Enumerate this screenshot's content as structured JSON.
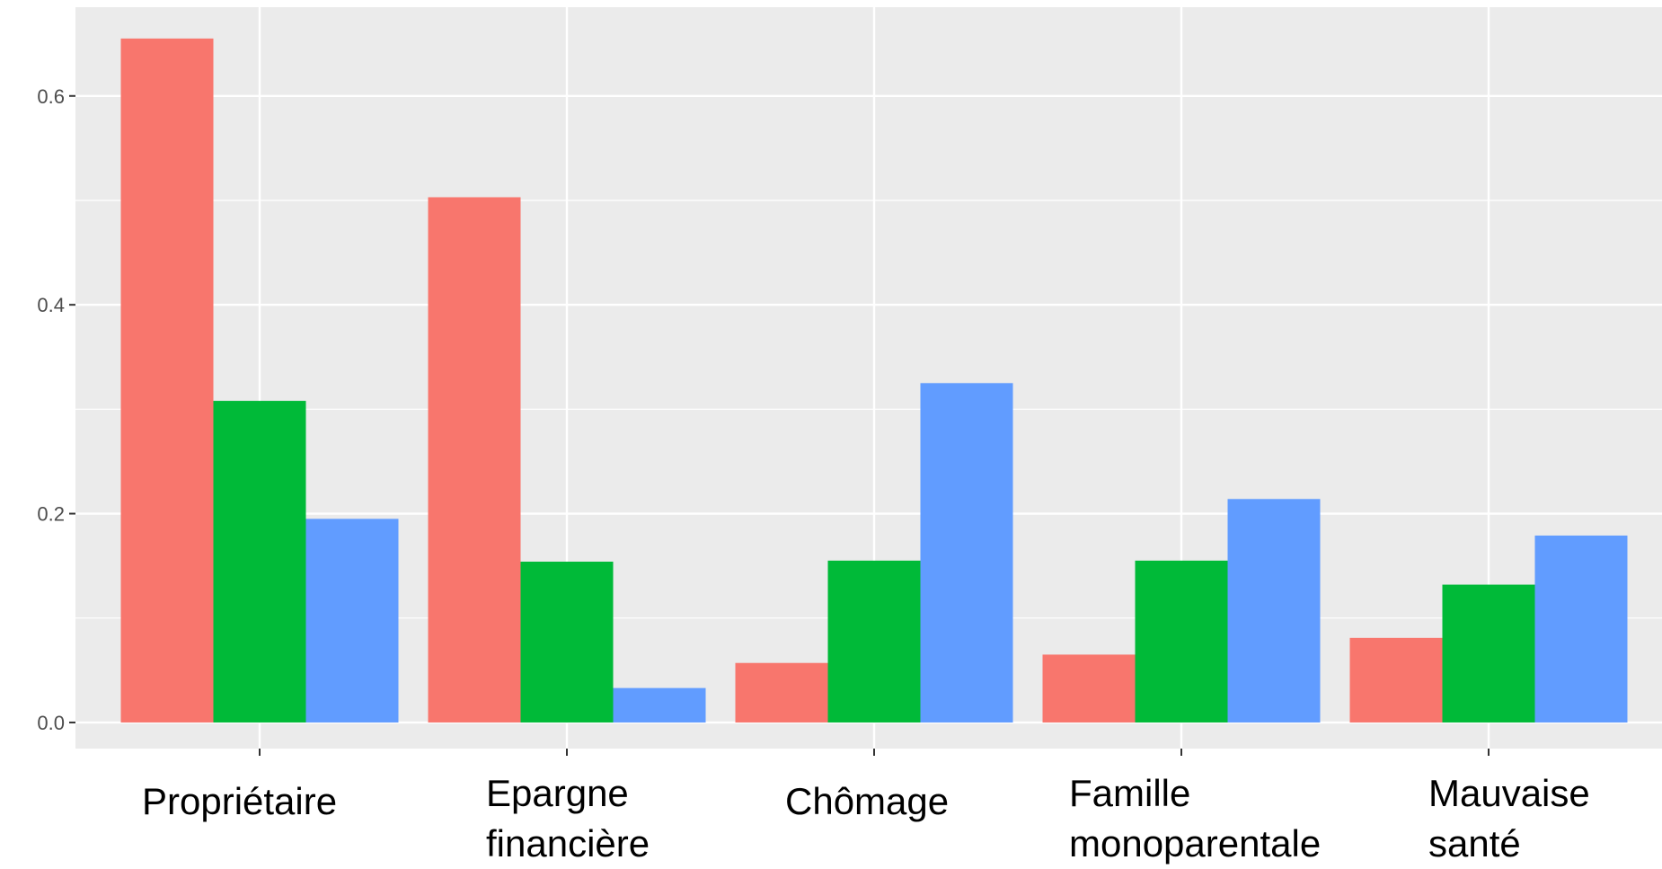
{
  "chart_data": {
    "type": "bar",
    "title": "",
    "xlabel": "",
    "ylabel": "",
    "categories": [
      [
        "Propriétaire"
      ],
      [
        "Epargne",
        "financière"
      ],
      [
        "Chômage"
      ],
      [
        "Famille",
        "monoparentale"
      ],
      [
        "Mauvaise",
        "santé"
      ]
    ],
    "series": [
      {
        "color": "#F8766D",
        "values": [
          0.655,
          0.503,
          0.057,
          0.065,
          0.081
        ]
      },
      {
        "color": "#00BA38",
        "values": [
          0.308,
          0.154,
          0.155,
          0.155,
          0.132
        ]
      },
      {
        "color": "#619CFF",
        "values": [
          0.195,
          0.033,
          0.325,
          0.214,
          0.179
        ]
      }
    ],
    "ylim": [
      -0.025,
      0.685
    ],
    "yticks": [
      0.0,
      0.2,
      0.4,
      0.6
    ],
    "ytick_labels": [
      "0.0",
      "0.2",
      "0.4",
      "0.6"
    ],
    "grid": true,
    "legend": "none",
    "panel_background": "#EBEBEB",
    "grid_color": "#FFFFFF"
  }
}
